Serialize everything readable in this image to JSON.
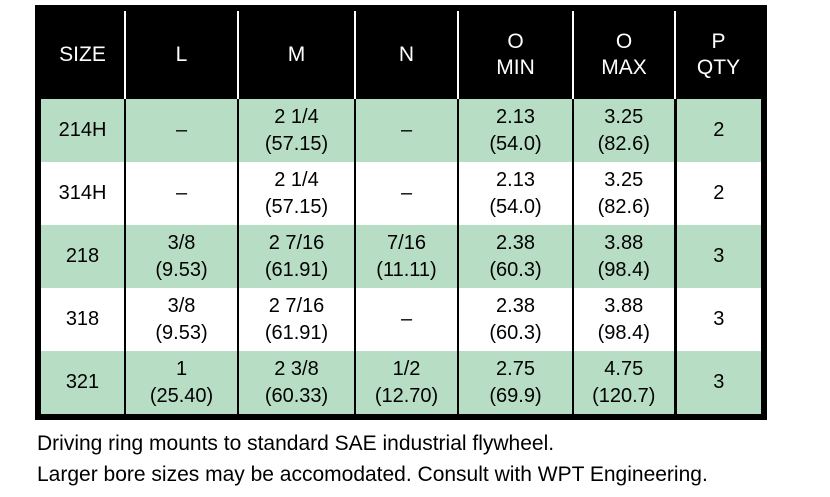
{
  "colors": {
    "row_shade": "#b7dec4",
    "header_bg": "#000000",
    "header_text": "#ffffff",
    "grid_line": "#000000",
    "text": "#000000"
  },
  "table": {
    "columns": [
      {
        "key": "size",
        "line1": "SIZE"
      },
      {
        "key": "l",
        "line1": "L"
      },
      {
        "key": "m",
        "line1": "M"
      },
      {
        "key": "n",
        "line1": "N"
      },
      {
        "key": "o_min",
        "line1": "O",
        "line2": "MIN"
      },
      {
        "key": "o_max",
        "line1": "O",
        "line2": "MAX"
      },
      {
        "key": "p_qty",
        "line1": "P",
        "line2": "QTY"
      }
    ],
    "rows": [
      {
        "shaded": true,
        "cells": [
          {
            "value": "214H"
          },
          {
            "value": "–"
          },
          {
            "value": "2 1/4",
            "metric": "(57.15)"
          },
          {
            "value": "–"
          },
          {
            "value": "2.13",
            "metric": "(54.0)"
          },
          {
            "value": "3.25",
            "metric": "(82.6)"
          },
          {
            "value": "2"
          }
        ]
      },
      {
        "shaded": false,
        "cells": [
          {
            "value": "314H"
          },
          {
            "value": "–"
          },
          {
            "value": "2 1/4",
            "metric": "(57.15)"
          },
          {
            "value": "–"
          },
          {
            "value": "2.13",
            "metric": "(54.0)"
          },
          {
            "value": "3.25",
            "metric": "(82.6)"
          },
          {
            "value": "2"
          }
        ]
      },
      {
        "shaded": true,
        "cells": [
          {
            "value": "218"
          },
          {
            "value": "3/8",
            "metric": "(9.53)"
          },
          {
            "value": "2 7/16",
            "metric": "(61.91)"
          },
          {
            "value": "7/16",
            "metric": "(11.11)"
          },
          {
            "value": "2.38",
            "metric": "(60.3)"
          },
          {
            "value": "3.88",
            "metric": "(98.4)"
          },
          {
            "value": "3"
          }
        ]
      },
      {
        "shaded": false,
        "cells": [
          {
            "value": "318"
          },
          {
            "value": "3/8",
            "metric": "(9.53)"
          },
          {
            "value": "2 7/16",
            "metric": "(61.91)"
          },
          {
            "value": "–"
          },
          {
            "value": "2.38",
            "metric": "(60.3)"
          },
          {
            "value": "3.88",
            "metric": "(98.4)"
          },
          {
            "value": "3"
          }
        ]
      },
      {
        "shaded": true,
        "cells": [
          {
            "value": "321"
          },
          {
            "value": "1",
            "metric": "(25.40)"
          },
          {
            "value": "2 3/8",
            "metric": "(60.33)"
          },
          {
            "value": "1/2",
            "metric": "(12.70)"
          },
          {
            "value": "2.75",
            "metric": "(69.9)"
          },
          {
            "value": "4.75",
            "metric": "(120.7)"
          },
          {
            "value": "3"
          }
        ]
      }
    ]
  },
  "notes": [
    "Driving ring mounts to standard SAE industrial flywheel.",
    "Larger bore sizes may be accomodated. Consult with WPT Engineering."
  ]
}
